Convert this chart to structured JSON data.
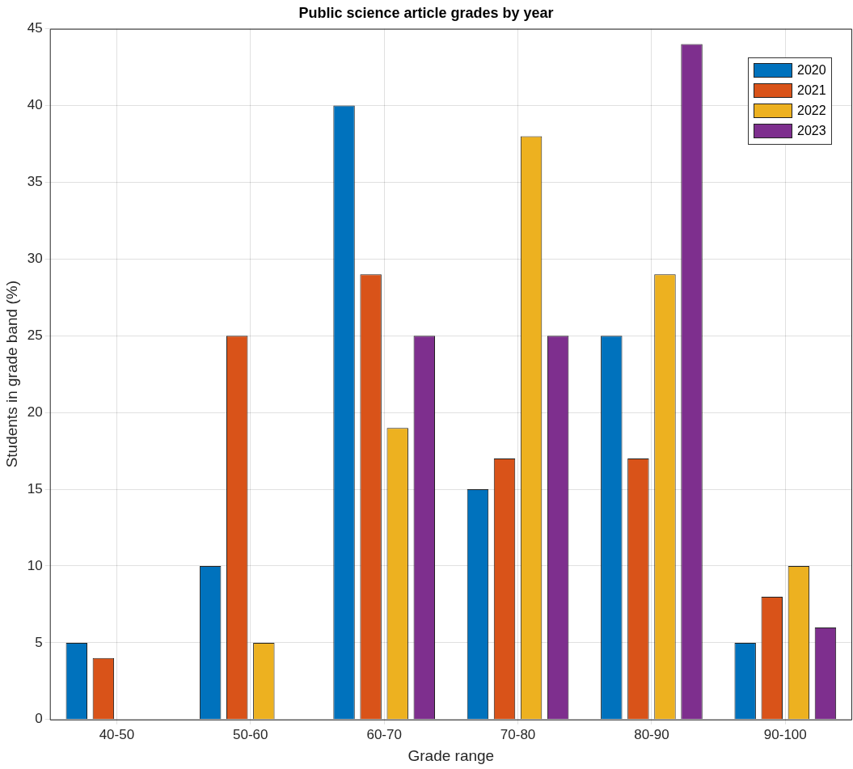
{
  "chart_data": {
    "type": "bar",
    "title": "Public science article grades by year",
    "xlabel": "Grade range",
    "ylabel": "Students in grade band (%)",
    "categories": [
      "40-50",
      "50-60",
      "60-70",
      "70-80",
      "80-90",
      "90-100"
    ],
    "series": [
      {
        "name": "2020",
        "color": "#0072bd",
        "values": [
          5,
          10,
          40,
          15,
          25,
          5
        ]
      },
      {
        "name": "2021",
        "color": "#d95319",
        "values": [
          4,
          25,
          29,
          17,
          17,
          8
        ]
      },
      {
        "name": "2022",
        "color": "#edb120",
        "values": [
          0,
          5,
          19,
          38,
          29,
          10
        ]
      },
      {
        "name": "2023",
        "color": "#7e2f8e",
        "values": [
          0,
          0,
          25,
          25,
          44,
          6
        ]
      }
    ],
    "ylim": [
      0,
      45
    ],
    "yticks": [
      0,
      5,
      10,
      15,
      20,
      25,
      30,
      35,
      40,
      45
    ],
    "grid": true,
    "legend": "top right"
  }
}
